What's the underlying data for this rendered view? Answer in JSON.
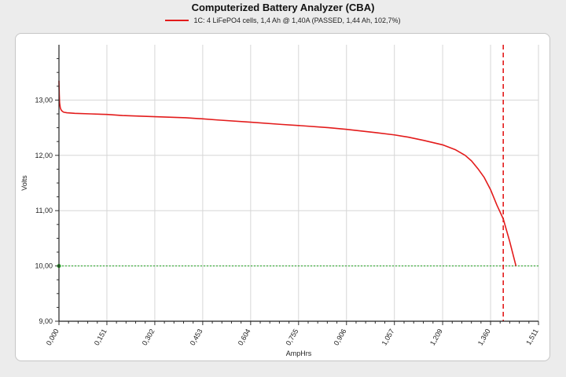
{
  "chart_data": {
    "type": "line",
    "title": "Computerized Battery Analyzer (CBA)",
    "xlabel": "AmpHrs",
    "ylabel": "Volts",
    "xlim": [
      0,
      1.511
    ],
    "ylim": [
      9.0,
      14.0
    ],
    "x_ticks": [
      "0,000",
      "0,151",
      "0,302",
      "0,453",
      "0,604",
      "0,755",
      "0,906",
      "1,057",
      "1,209",
      "1,360",
      "1,511"
    ],
    "x_tick_values": [
      0,
      0.151,
      0.302,
      0.453,
      0.604,
      0.755,
      0.906,
      1.057,
      1.209,
      1.36,
      1.511
    ],
    "y_ticks": [
      "9,00",
      "10,00",
      "11,00",
      "12,00",
      "13,00"
    ],
    "y_tick_values": [
      9,
      10,
      11,
      12,
      13
    ],
    "grid": true,
    "legend_position": "top-center",
    "series": [
      {
        "name": "1C: 4 LiFePO4 cells, 1,4 Ah @ 1,40A (PASSED, 1,44 Ah, 102,7%)",
        "color": "#e31b1b",
        "x": [
          0,
          0.001,
          0.002,
          0.004,
          0.006,
          0.01,
          0.015,
          0.025,
          0.05,
          0.1,
          0.151,
          0.2,
          0.302,
          0.4,
          0.453,
          0.5,
          0.604,
          0.7,
          0.755,
          0.85,
          0.906,
          1.0,
          1.057,
          1.1,
          1.15,
          1.209,
          1.25,
          1.28,
          1.3,
          1.32,
          1.34,
          1.36,
          1.38,
          1.4,
          1.42,
          1.44
        ],
        "y": [
          13.35,
          13.1,
          12.95,
          12.87,
          12.83,
          12.8,
          12.78,
          12.77,
          12.76,
          12.75,
          12.74,
          12.72,
          12.7,
          12.68,
          12.66,
          12.64,
          12.6,
          12.56,
          12.54,
          12.5,
          12.47,
          12.41,
          12.37,
          12.33,
          12.27,
          12.19,
          12.1,
          12.0,
          11.9,
          11.76,
          11.6,
          11.38,
          11.1,
          10.85,
          10.45,
          10.0
        ]
      }
    ],
    "reference_lines": [
      {
        "orientation": "horizontal",
        "value": 10.0,
        "color": "#1fa51f",
        "style": "dotted"
      },
      {
        "orientation": "vertical",
        "value": 1.4,
        "color": "#e31b1b",
        "style": "dashed"
      }
    ]
  },
  "colors": {
    "series": "#e31b1b",
    "cutoff_line": "#1fa51f",
    "grid": "#d6d6d6",
    "background": "#ececec",
    "panel": "#ffffff"
  }
}
